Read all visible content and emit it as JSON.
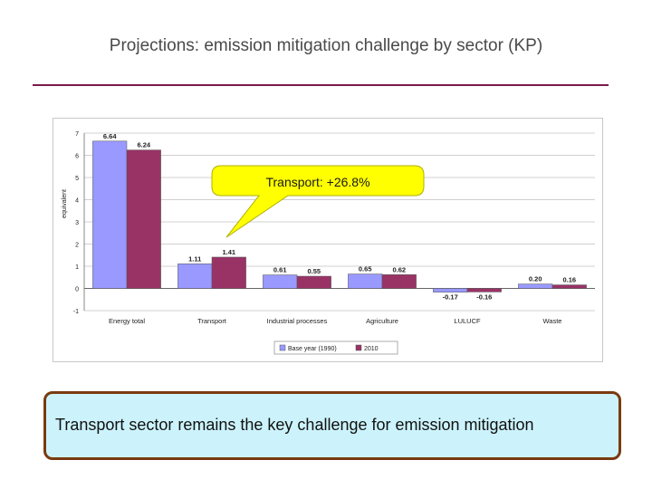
{
  "slide": {
    "title": "Projections: emission mitigation challenge by sector (KP)",
    "callout": "Transport: +26.8%",
    "message": "Transport sector remains the key challenge for emission mitigation"
  },
  "colors": {
    "title_rule": "#7b1a4a",
    "series_base": "#9999ff",
    "series_2010": "#993366",
    "callout_fill": "#ffff00",
    "message_fill": "#ccf3fb",
    "message_border": "#7a3a10"
  },
  "chart_data": {
    "type": "bar",
    "title": "",
    "xlabel": "",
    "ylabel": "equivalent",
    "categories": [
      "Energy total",
      "Transport",
      "Industrial processes",
      "Agriculture",
      "LULUCF",
      "Waste"
    ],
    "series": [
      {
        "name": "Base year (1990)",
        "values": [
          6.64,
          1.11,
          0.61,
          0.65,
          -0.17,
          0.2
        ],
        "labels": [
          "6.64",
          "1.11",
          "0.61",
          "0.65",
          "-0.17",
          "0.20"
        ]
      },
      {
        "name": "2010",
        "values": [
          6.24,
          1.41,
          0.55,
          0.62,
          -0.16,
          0.16
        ],
        "labels": [
          "6.24",
          "1.41",
          "0.55",
          "0.62",
          "-0.16",
          "0.16"
        ]
      }
    ],
    "ylim": [
      -1,
      7
    ],
    "yticks": [
      -1,
      0,
      1,
      2,
      3,
      4,
      5,
      6,
      7
    ],
    "grid": true,
    "legend_position": "bottom-center"
  }
}
